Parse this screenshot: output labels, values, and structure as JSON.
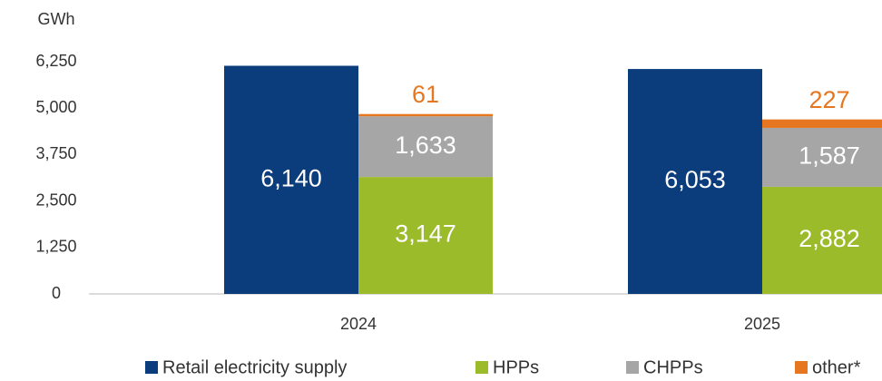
{
  "chart_data": {
    "type": "bar",
    "y_label": "GWh",
    "categories": [
      "2024",
      "2025"
    ],
    "series": [
      {
        "name": "Retail electricity supply",
        "color": "#0b3c7c",
        "values": [
          6140,
          6053
        ],
        "value_labels": [
          "6,140",
          "6,053"
        ]
      },
      {
        "name": "HPPs",
        "color": "#9cbb2b",
        "values": [
          3147,
          2882
        ],
        "value_labels": [
          "3,147",
          "2,882"
        ]
      },
      {
        "name": "CHPPs",
        "color": "#a6a6a6",
        "values": [
          1633,
          1587
        ],
        "value_labels": [
          "1,633",
          "1,587"
        ]
      },
      {
        "name": "other*",
        "color": "#e6761f",
        "values": [
          61,
          227
        ]
      }
    ],
    "ylim": [
      0,
      6250
    ],
    "yticks": [
      0,
      {
        "value": 1250,
        "label": "1,250"
      },
      {
        "value": 2500,
        "label": "2,500"
      },
      {
        "value": 3750,
        "label": "3,750"
      },
      {
        "value": 5000,
        "label": "5,000"
      },
      {
        "value": 6250,
        "label": "6,250"
      }
    ]
  }
}
